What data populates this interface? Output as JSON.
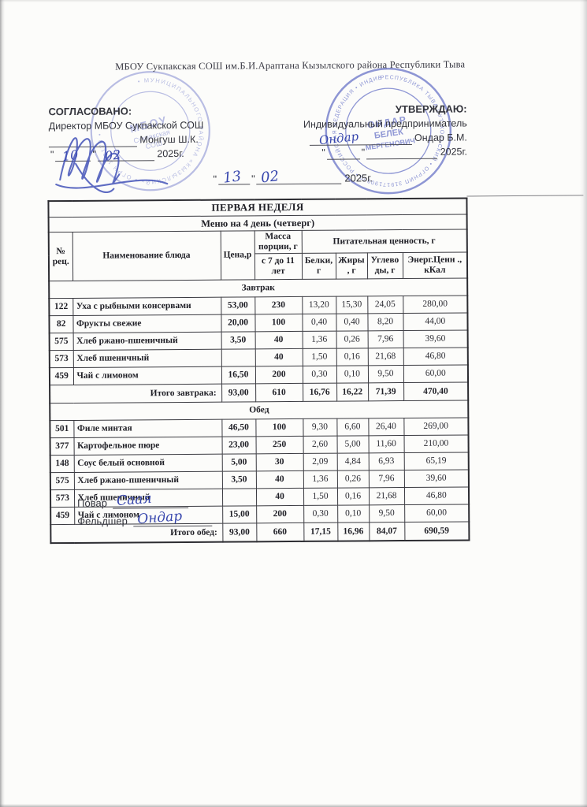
{
  "document": {
    "quote_mark": "\"",
    "school_header": "МБОУ Сукпакская СОШ им.Б.И.Араптана Кызылского района Республики Тыва",
    "agreed": {
      "title": "СОГЛАСОВАНО:",
      "role": "Директор МБОУ Сукпакской СОШ",
      "name": "Монгуш Ш.К.",
      "date_day": "10",
      "date_month": "02",
      "date_year": "2025г."
    },
    "approved": {
      "title": "УТВЕРЖДАЮ:",
      "role": "Индивидуальный предприниматель",
      "name": "Ондар Б.М.",
      "signature": "Ондар",
      "date_year": "2025г."
    },
    "center_date": {
      "day": "13",
      "month": "02",
      "year": "2025г."
    },
    "stamps": {
      "left": {
        "rim": "• МУНИЦИПАЛЬНОГО РАЙОНА «КЫЗЫЛСКИЙ» • ОГРН 102170 •",
        "center_lines": [
          "МБОУ",
          "Сукпакская",
          "СОШ"
        ]
      },
      "right": {
        "rim": "РЕСПУБЛИКА ТЫВА СУТ-ХОЛЬСКИЙ • ОГРНИП 31917190000 • РОССИЙСКАЯ ФЕДЕРАЦИЯ • ИНДИВИДУАЛЬНЫЙ ПРЕДПРИНИМАТЕЛЬ",
        "center_lines": [
          "ОНДАР",
          "БЕЛЕК",
          "МЕРГЕНОВИЧ"
        ]
      }
    },
    "footer": {
      "cook_label": "Повар",
      "cook_signature": "Саая",
      "paramedic_label": "Фельдшер",
      "paramedic_signature": "Ондар"
    }
  },
  "table": {
    "week_title": "ПЕРВАЯ НЕДЕЛЯ",
    "menu_title": "Меню на 4 день (четверг)",
    "columns": {
      "no": "№ рец.",
      "dish": "Наименование блюда",
      "price": "Цена,р",
      "mass_group": "Масса порции, г",
      "mass_sub": "с 7 до 11 лет",
      "nutrition_group": "Питательная ценность, г",
      "protein": "Белки, г",
      "fat": "Жиры , г",
      "carbs": "Углево ды, г",
      "energy": "Энерг.Ценн ., кКал"
    },
    "sections": [
      {
        "title": "Завтрак",
        "rows": [
          [
            "122",
            "Уха с рыбными консервами",
            "53,00",
            "230",
            "13,20",
            "15,30",
            "24,05",
            "280,00"
          ],
          [
            "82",
            "Фрукты свежие",
            "20,00",
            "100",
            "0,40",
            "0,40",
            "8,20",
            "44,00"
          ],
          [
            "575",
            "Хлеб ржано-пшеничный",
            "3,50",
            "40",
            "1,36",
            "0,26",
            "7,96",
            "39,60"
          ],
          [
            "573",
            "Хлеб пшеничный",
            "",
            "40",
            "1,50",
            "0,16",
            "21,68",
            "46,80"
          ],
          [
            "459",
            "Чай с  лимоном",
            "16,50",
            "200",
            "0,30",
            "0,10",
            "9,50",
            "60,00"
          ]
        ],
        "total_label": "Итого завтрака:",
        "total": [
          "93,00",
          "610",
          "16,76",
          "16,22",
          "71,39",
          "470,40"
        ]
      },
      {
        "title": "Обед",
        "rows": [
          [
            "501",
            "Филе минтая",
            "46,50",
            "100",
            "9,30",
            "6,60",
            "26,40",
            "269,00"
          ],
          [
            "377",
            "Картофельное пюре",
            "23,00",
            "250",
            "2,60",
            "5,00",
            "11,60",
            "210,00"
          ],
          [
            "148",
            "Соус белый основной",
            "5,00",
            "30",
            "2,09",
            "4,84",
            "6,93",
            "65,19"
          ],
          [
            "575",
            "Хлеб ржано-пшеничный",
            "3,50",
            "40",
            "1,36",
            "0,26",
            "7,96",
            "39,60"
          ],
          [
            "573",
            "Хлеб пшеничный",
            "",
            "40",
            "1,50",
            "0,16",
            "21,68",
            "46,80"
          ],
          [
            "459",
            "Чай с  лимоном",
            "15,00",
            "200",
            "0,30",
            "0,10",
            "9,50",
            "60,00"
          ]
        ],
        "total_label": "Итого обед:",
        "total": [
          "93,00",
          "660",
          "17,15",
          "16,96",
          "84,07",
          "690,59"
        ]
      }
    ]
  }
}
